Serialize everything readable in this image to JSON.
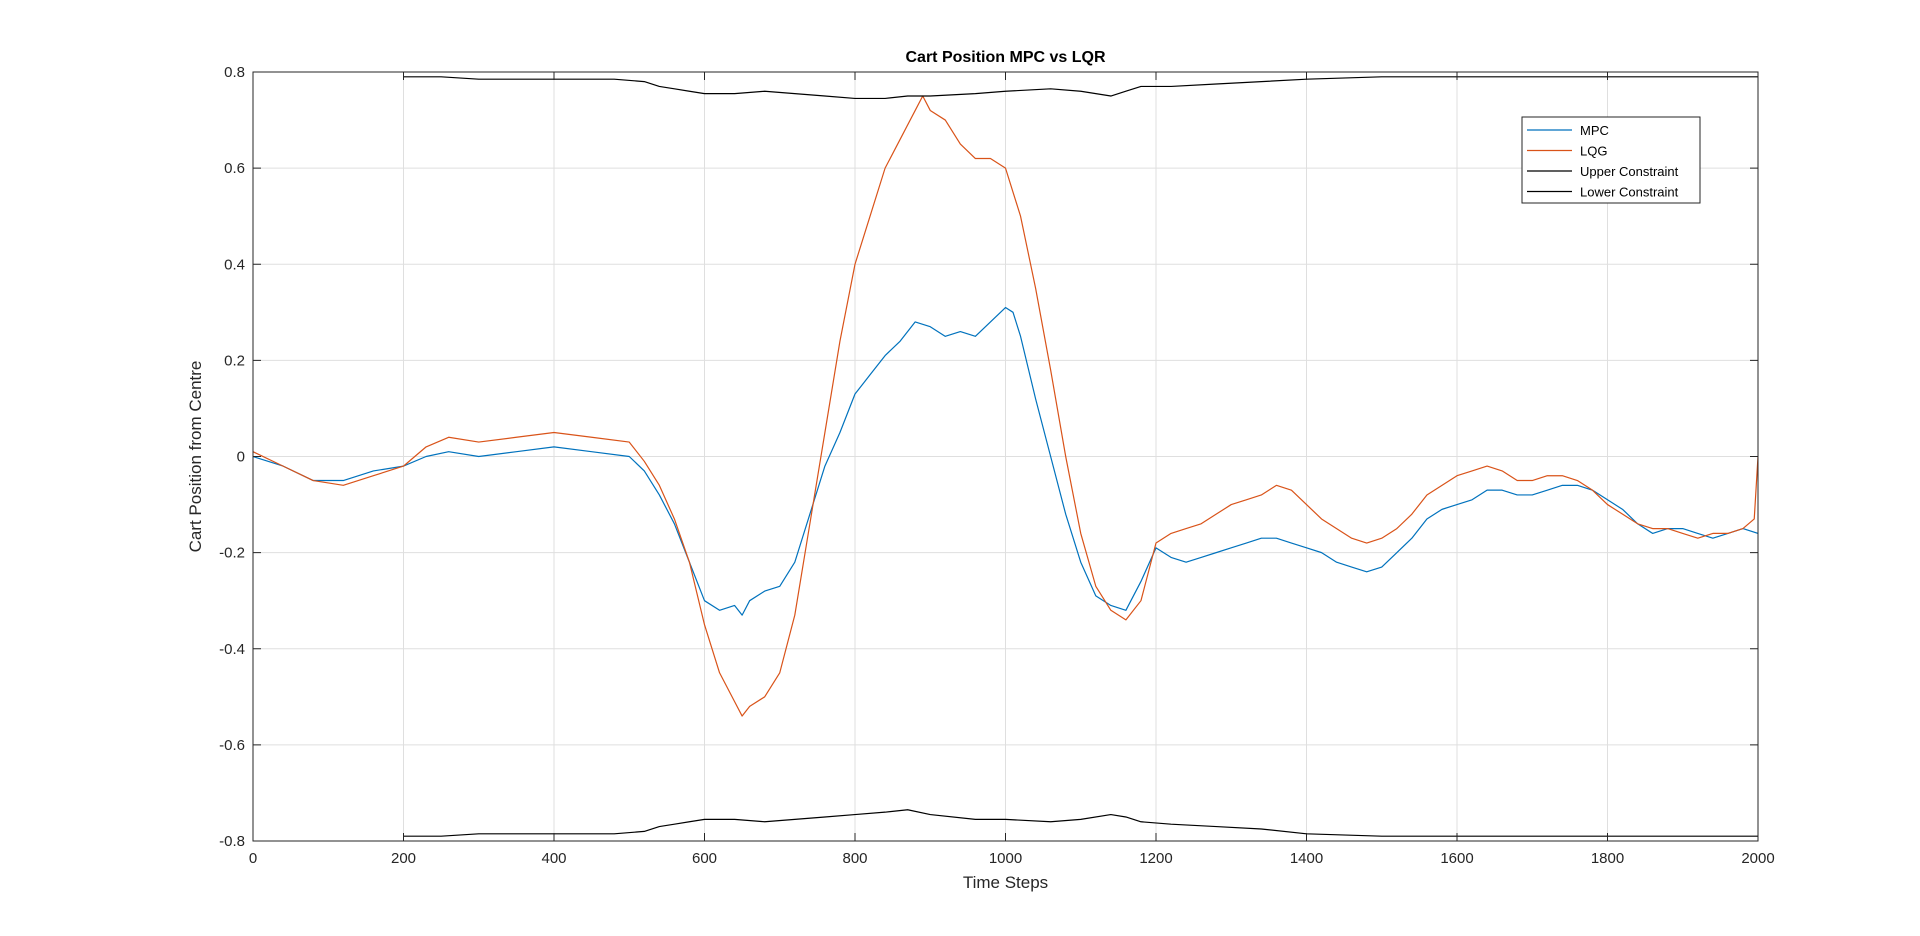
{
  "chart_data": {
    "type": "line",
    "title": "Cart Position MPC vs LQR",
    "xlabel": "Time Steps",
    "ylabel": "Cart Position from Centre",
    "xlim": [
      0,
      2000
    ],
    "ylim": [
      -0.8,
      0.8
    ],
    "xticks": [
      0,
      200,
      400,
      600,
      800,
      1000,
      1200,
      1400,
      1600,
      1800,
      2000
    ],
    "xtick_labels": [
      "0",
      "200",
      "400",
      "600",
      "800",
      "1000",
      "1200",
      "1400",
      "1600",
      "1800",
      "2000"
    ],
    "yticks": [
      -0.8,
      -0.6,
      -0.4,
      -0.2,
      0,
      0.2,
      0.4,
      0.6,
      0.8
    ],
    "ytick_labels": [
      "-0.8",
      "-0.6",
      "-0.4",
      "-0.2",
      "0",
      "0.2",
      "0.4",
      "0.6",
      "0.8"
    ],
    "grid": true,
    "legend_position": "top-right",
    "series": [
      {
        "name": "MPC",
        "color": "#0072BD",
        "x": [
          0,
          40,
          80,
          120,
          160,
          200,
          230,
          260,
          300,
          350,
          400,
          450,
          500,
          520,
          540,
          560,
          580,
          600,
          620,
          640,
          650,
          660,
          680,
          700,
          720,
          740,
          760,
          780,
          800,
          820,
          840,
          860,
          880,
          900,
          920,
          940,
          960,
          980,
          1000,
          1010,
          1020,
          1040,
          1060,
          1080,
          1100,
          1120,
          1140,
          1160,
          1180,
          1200,
          1220,
          1240,
          1260,
          1280,
          1300,
          1320,
          1340,
          1360,
          1380,
          1400,
          1420,
          1440,
          1460,
          1480,
          1500,
          1520,
          1540,
          1560,
          1580,
          1600,
          1620,
          1640,
          1660,
          1680,
          1700,
          1720,
          1740,
          1760,
          1780,
          1800,
          1820,
          1840,
          1860,
          1880,
          1900,
          1920,
          1940,
          1960,
          1980,
          2000
        ],
        "y": [
          0.0,
          -0.02,
          -0.05,
          -0.05,
          -0.03,
          -0.02,
          0.0,
          0.01,
          0.0,
          0.01,
          0.02,
          0.01,
          0.0,
          -0.03,
          -0.08,
          -0.14,
          -0.22,
          -0.3,
          -0.32,
          -0.31,
          -0.33,
          -0.3,
          -0.28,
          -0.27,
          -0.22,
          -0.12,
          -0.02,
          0.05,
          0.13,
          0.17,
          0.21,
          0.24,
          0.28,
          0.27,
          0.25,
          0.26,
          0.25,
          0.28,
          0.31,
          0.3,
          0.25,
          0.12,
          0.0,
          -0.12,
          -0.22,
          -0.29,
          -0.31,
          -0.32,
          -0.26,
          -0.19,
          -0.21,
          -0.22,
          -0.21,
          -0.2,
          -0.19,
          -0.18,
          -0.17,
          -0.17,
          -0.18,
          -0.19,
          -0.2,
          -0.22,
          -0.23,
          -0.24,
          -0.23,
          -0.2,
          -0.17,
          -0.13,
          -0.11,
          -0.1,
          -0.09,
          -0.07,
          -0.07,
          -0.08,
          -0.08,
          -0.07,
          -0.06,
          -0.06,
          -0.07,
          -0.09,
          -0.11,
          -0.14,
          -0.16,
          -0.15,
          -0.15,
          -0.16,
          -0.17,
          -0.16,
          -0.15,
          -0.16
        ]
      },
      {
        "name": "LQG",
        "color": "#D95319",
        "x": [
          0,
          40,
          80,
          120,
          160,
          200,
          230,
          260,
          300,
          350,
          400,
          450,
          500,
          520,
          540,
          560,
          580,
          600,
          620,
          640,
          650,
          660,
          680,
          700,
          720,
          740,
          760,
          780,
          800,
          820,
          840,
          860,
          880,
          890,
          900,
          920,
          940,
          960,
          980,
          1000,
          1010,
          1020,
          1040,
          1060,
          1080,
          1100,
          1120,
          1140,
          1160,
          1180,
          1200,
          1220,
          1240,
          1260,
          1280,
          1300,
          1320,
          1340,
          1360,
          1380,
          1400,
          1420,
          1440,
          1460,
          1480,
          1500,
          1520,
          1540,
          1560,
          1580,
          1600,
          1620,
          1640,
          1660,
          1680,
          1700,
          1720,
          1740,
          1760,
          1780,
          1800,
          1820,
          1840,
          1860,
          1880,
          1900,
          1920,
          1940,
          1960,
          1980,
          1995,
          2000
        ],
        "y": [
          0.01,
          -0.02,
          -0.05,
          -0.06,
          -0.04,
          -0.02,
          0.02,
          0.04,
          0.03,
          0.04,
          0.05,
          0.04,
          0.03,
          -0.01,
          -0.06,
          -0.13,
          -0.22,
          -0.35,
          -0.45,
          -0.51,
          -0.54,
          -0.52,
          -0.5,
          -0.45,
          -0.33,
          -0.14,
          0.05,
          0.24,
          0.4,
          0.5,
          0.6,
          0.66,
          0.72,
          0.75,
          0.72,
          0.7,
          0.65,
          0.62,
          0.62,
          0.6,
          0.55,
          0.5,
          0.35,
          0.18,
          0.0,
          -0.16,
          -0.27,
          -0.32,
          -0.34,
          -0.3,
          -0.18,
          -0.16,
          -0.15,
          -0.14,
          -0.12,
          -0.1,
          -0.09,
          -0.08,
          -0.06,
          -0.07,
          -0.1,
          -0.13,
          -0.15,
          -0.17,
          -0.18,
          -0.17,
          -0.15,
          -0.12,
          -0.08,
          -0.06,
          -0.04,
          -0.03,
          -0.02,
          -0.03,
          -0.05,
          -0.05,
          -0.04,
          -0.04,
          -0.05,
          -0.07,
          -0.1,
          -0.12,
          -0.14,
          -0.15,
          -0.15,
          -0.16,
          -0.17,
          -0.16,
          -0.16,
          -0.15,
          -0.13,
          0.0
        ]
      },
      {
        "name": "Upper Constraint",
        "color": "#000000",
        "x": [
          200,
          250,
          300,
          400,
          480,
          520,
          540,
          560,
          580,
          600,
          640,
          680,
          720,
          760,
          800,
          840,
          870,
          900,
          960,
          1000,
          1060,
          1100,
          1140,
          1160,
          1180,
          1220,
          1280,
          1340,
          1400,
          1500,
          1600,
          1700,
          1800,
          1900,
          2000
        ],
        "y": [
          0.79,
          0.79,
          0.785,
          0.785,
          0.785,
          0.78,
          0.77,
          0.765,
          0.76,
          0.755,
          0.755,
          0.76,
          0.755,
          0.75,
          0.745,
          0.745,
          0.75,
          0.75,
          0.755,
          0.76,
          0.765,
          0.76,
          0.75,
          0.76,
          0.77,
          0.77,
          0.775,
          0.78,
          0.785,
          0.79,
          0.79,
          0.79,
          0.79,
          0.79,
          0.79
        ]
      },
      {
        "name": "Lower Constraint",
        "color": "#000000",
        "x": [
          200,
          250,
          300,
          400,
          480,
          520,
          540,
          560,
          580,
          600,
          640,
          680,
          720,
          760,
          800,
          840,
          870,
          900,
          960,
          1000,
          1060,
          1100,
          1140,
          1160,
          1180,
          1220,
          1280,
          1340,
          1400,
          1500,
          1600,
          1700,
          1800,
          1900,
          2000
        ],
        "y": [
          -0.79,
          -0.79,
          -0.785,
          -0.785,
          -0.785,
          -0.78,
          -0.77,
          -0.765,
          -0.76,
          -0.755,
          -0.755,
          -0.76,
          -0.755,
          -0.75,
          -0.745,
          -0.74,
          -0.735,
          -0.745,
          -0.755,
          -0.755,
          -0.76,
          -0.755,
          -0.745,
          -0.75,
          -0.76,
          -0.765,
          -0.77,
          -0.775,
          -0.785,
          -0.79,
          -0.79,
          -0.79,
          -0.79,
          -0.79,
          -0.79
        ]
      }
    ]
  }
}
